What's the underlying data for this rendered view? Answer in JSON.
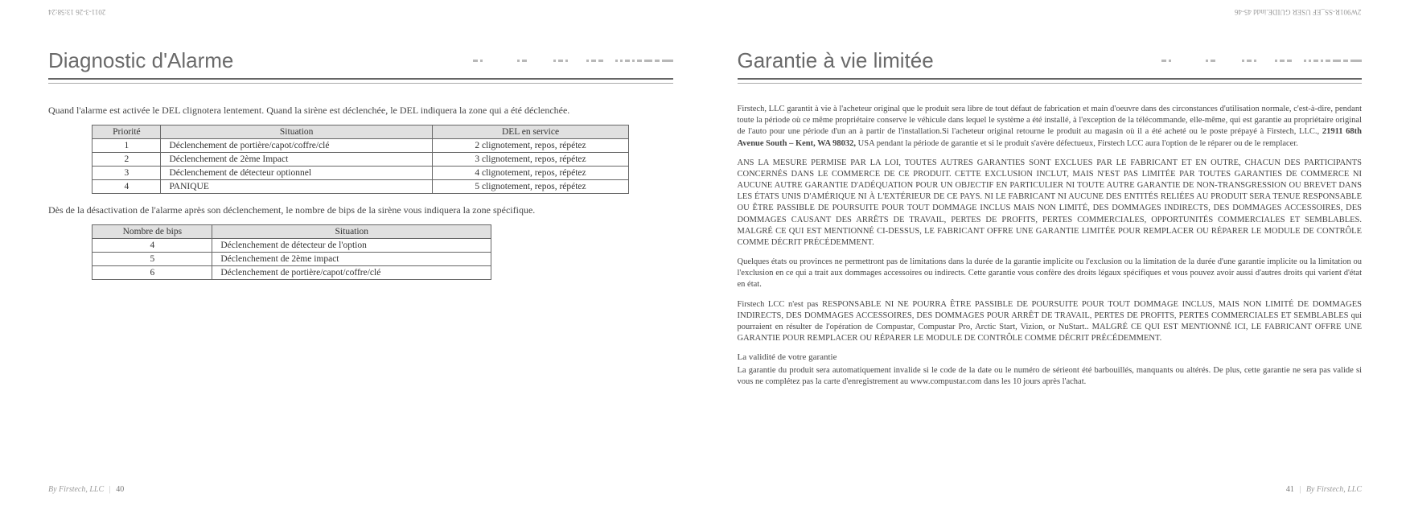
{
  "header_marks": {
    "left": "2011-3-26   13:58:24",
    "right": "2W901R-SS_EF USER GUIDE.indd   45-46"
  },
  "left_page": {
    "title": "Diagnostic d'Alarme",
    "intro": "Quand l'alarme est activée le DEL clignotera lentement.  Quand la sirène est déclenchée, le DEL indiquera la zone qui a été déclenchée.",
    "table1": {
      "headers": [
        "Priorité",
        "Situation",
        "DEL en service"
      ],
      "rows": [
        [
          "1",
          "Déclenchement de portière/capot/coffre/clé",
          "2 clignotement, repos, répétez"
        ],
        [
          "2",
          "Déclenchement de 2ème Impact",
          "3 clignotement, repos, répétez"
        ],
        [
          "3",
          "Déclenchement de détecteur  optionnel",
          "4 clignotement, repos, répétez"
        ],
        [
          "4",
          "PANIQUE",
          "5 clignotement, repos, répétez"
        ]
      ]
    },
    "mid_text": "Dès de la désactivation de l'alarme après son déclenchement, le nombre de bips de la sirène vous indiquera la zone spécifique.",
    "table2": {
      "headers": [
        "Nombre de bips",
        "Situation"
      ],
      "rows": [
        [
          "4",
          "Déclenchement de détecteur de l'option"
        ],
        [
          "5",
          "Déclenchement  de 2ème impact"
        ],
        [
          "6",
          "Déclenchement  de portière/capot/coffre/clé"
        ]
      ]
    },
    "footer_company": "By Firstech, LLC",
    "footer_page": "40"
  },
  "right_page": {
    "title": "Garantie à vie limitée",
    "p1a": "Firstech, LLC garantit à vie à l'acheteur original que le produit sera libre de tout défaut de fabrication et main d'oeuvre dans des circonstances d'utilisation normale, c'est-à-dire, pendant toute la période où ce même propriétaire conserve le véhicule dans lequel le système a été installé, à l'exception de la télécommande, elle-même, qui est garantie au propriétaire original de l'auto pour une période d'un an à partir de l'installation.Si l'acheteur original retourne le produit au magasin où il a été acheté ou le poste prépayé à Firstech, LLC., ",
    "p1b_bold": "21911 68th Avenue South –  Kent, WA 98032,",
    "p1c": " USA pendant la période de garantie et si le produit s'avère défectueux, Firstech LCC aura l'option de le réparer ou  de le remplacer.",
    "p2": "ANS LA MESURE PERMISE PAR LA LOI, TOUTES AUTRES GARANTIES SONT EXCLUES PAR LE FABRICANT ET EN OUTRE, CHACUN DES PARTICIPANTS CONCERNÉS DANS LE COMMERCE DE CE PRODUIT.  CETTE EXCLUSION INCLUT, MAIS N'EST PAS LIMITÉE PAR TOUTES GARANTIES DE COMMERCE NI AUCUNE AUTRE GARANTIE D'ADÉQUATION POUR UN OBJECTIF EN PARTICULIER NI TOUTE AUTRE GARANTIE DE NON-TRANSGRESSION OU BREVET DANS LES ÉTATS UNIS D'AMÉRIQUE NI À L'EXTÉRIEUR DE CE PAYS. NI LE FABRICANT NI AUCUNE DES ENTITÉS RELIÉES AU PRODUIT SERA TENUE RESPONSABLE OU ÊTRE PASSIBLE DE POURSUITE POUR TOUT DOMMAGE INCLUS MAIS NON LIMITÉ, DES DOMMAGES INDIRECTS, DES DOMMAGES ACCESSOIRES, DES DOMMAGES CAUSANT DES ARRÊTS DE TRAVAIL, PERTES DE PROFITS, PERTES COMMERCIALES, OPPORTUNITÉS COMMERCIALES ET SEMBLABLES.  MALGRÉ CE QUI EST MENTIONNÉ CI-DESSUS, LE FABRICANT OFFRE UNE GARANTIE LIMITÉE POUR REMPLACER OU RÉPARER LE MODULE DE CONTRÔLE COMME DÉCRIT PRÉCÉDEMMENT.",
    "p3": "Quelques états ou provinces ne permettront pas de limitations dans la durée de la garantie implicite ou l'exclusion ou la limitation de la durée d'une garantie implicite ou la limitation ou l'exclusion en ce qui a trait aux dommages accessoires ou indirects. Cette garantie vous confère des droits légaux spécifiques et vous pouvez avoir aussi d'autres droits qui varient d'état en état.",
    "p4": "Firstech LCC n'est pas RESPONSABLE NI NE POURRA ÊTRE PASSIBLE DE POURSUITE POUR TOUT DOMMAGE INCLUS, MAIS NON LIMITÉ DE DOMMAGES INDIRECTS, DES DOMMAGES ACCESSOIRES, DES DOMMAGES POUR ARRÊT DE TRAVAIL, PERTES DE PROFITS, PERTES COMMERCIALES ET SEMBLABLES qui pourraient en résulter de l'opération de Compustar, Compustar Pro, Arctic Start, Vizion, or NuStart.. MALGRÉ CE QUI EST MENTIONNÉ ICI, LE FABRICANT OFFRE UNE GARANTIE POUR REMPLACER OU RÉPARER LE MODULE DE CONTRÔLE COMME DÉCRIT PRÉCÉDEMMENT.",
    "sub": "La validité de votre garantie",
    "p5": "La garantie du produit sera automatiquement invalide si le code de la date ou le numéro de sérieont été barbouillés, manquants ou altérés.  De plus, cette garantie ne sera pas valide si vous ne complétez pas la carte d'enregistrement  au www.compustar.com dans les 10 jours après l'achat.",
    "footer_company": "By Firstech, LLC",
    "footer_page": "41"
  },
  "styling": {
    "title_color": "#6a6a6a",
    "title_fontsize": 26,
    "body_fontsize": 12,
    "small_fontsize": 10.5,
    "table_header_bg": "#e0e0e0",
    "border_color": "#666666",
    "footer_color": "#999999",
    "background": "#ffffff",
    "dash_color": "#b8b8b8"
  }
}
